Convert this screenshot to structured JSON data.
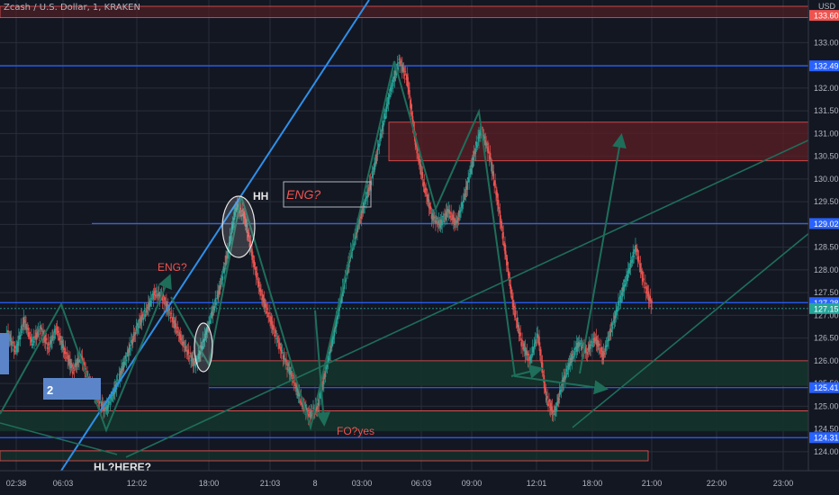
{
  "header": {
    "title": "Zcash / U.S. Dollar, 1, KRAKEN"
  },
  "currency": "USD",
  "colors": {
    "background": "#131722",
    "grid": "#2a2e39",
    "text": "#b2b5be",
    "up": "#26a69a",
    "down": "#ef5350",
    "blue_line": "#2962ff",
    "trend_line": "#2f8fe8",
    "arrow": "#1e6e5a",
    "supply_zone": "#5c1f26",
    "demand_zone": "#15332b",
    "annotation_red": "#ef5350",
    "badge_blue": "#5b85c8"
  },
  "chart_data": {
    "type": "candlestick",
    "x_ticks": [
      "02:38",
      "06:03",
      "12:02",
      "18:00",
      "21:03",
      "8",
      "03:00",
      "06:03",
      "09:00",
      "12:01",
      "18:00",
      "21:00",
      "22:00",
      "23:00"
    ],
    "y_ticks": [
      "124.00",
      "124.50",
      "125.00",
      "125.50",
      "126.00",
      "126.50",
      "127.00",
      "127.50",
      "128.00",
      "128.50",
      "129.00",
      "129.50",
      "130.00",
      "130.50",
      "131.00",
      "131.50",
      "132.00",
      "132.50",
      "133.00"
    ],
    "ylim": [
      123.8,
      133.8
    ],
    "price_markers": [
      {
        "label": "133.60",
        "value": 133.6,
        "color": "#ef5350"
      },
      {
        "label": "132.49",
        "value": 132.49,
        "color": "#2962ff"
      },
      {
        "label": "129.02",
        "value": 129.02,
        "color": "#2962ff"
      },
      {
        "label": "127.28",
        "value": 127.28,
        "color": "#2962ff"
      },
      {
        "label": "127.15",
        "value": 127.15,
        "color": "#26a69a"
      },
      {
        "label": "125.41",
        "value": 125.41,
        "color": "#2962ff"
      },
      {
        "label": "124.31",
        "value": 124.31,
        "color": "#2962ff"
      }
    ],
    "annotations": [
      {
        "text": "HH",
        "color": "#e6e6e6"
      },
      {
        "text": "ENG?",
        "color": "#ef5350"
      },
      {
        "text": "ENG?",
        "color": "#ef5350"
      },
      {
        "text": "FO?yes",
        "color": "#ef5350"
      },
      {
        "text": "HL?HERE?",
        "color": "#e6e6e6"
      },
      {
        "text": "2",
        "color": "#ffffff"
      }
    ],
    "price_path": [
      [
        0,
        125.9
      ],
      [
        0.3,
        126.6
      ],
      [
        0.6,
        126.2
      ],
      [
        0.9,
        126.9
      ],
      [
        1.2,
        126.4
      ],
      [
        1.5,
        126.7
      ],
      [
        1.8,
        126.3
      ],
      [
        2.1,
        126.7
      ],
      [
        2.4,
        126.2
      ],
      [
        2.7,
        125.8
      ],
      [
        3.0,
        126.1
      ],
      [
        3.3,
        125.5
      ],
      [
        3.6,
        125.2
      ],
      [
        3.9,
        124.9
      ],
      [
        4.2,
        125.3
      ],
      [
        4.5,
        125.8
      ],
      [
        4.8,
        126.3
      ],
      [
        5.1,
        126.8
      ],
      [
        5.4,
        127.1
      ],
      [
        5.7,
        127.5
      ],
      [
        6.0,
        127.4
      ],
      [
        6.3,
        127.0
      ],
      [
        6.6,
        126.6
      ],
      [
        6.9,
        126.2
      ],
      [
        7.2,
        125.9
      ],
      [
        7.5,
        126.4
      ],
      [
        7.8,
        127.0
      ],
      [
        8.1,
        127.6
      ],
      [
        8.4,
        128.4
      ],
      [
        8.7,
        129.4
      ],
      [
        9.0,
        129.2
      ],
      [
        9.3,
        128.3
      ],
      [
        9.6,
        127.5
      ],
      [
        9.9,
        127.0
      ],
      [
        10.2,
        126.5
      ],
      [
        10.5,
        126.0
      ],
      [
        10.8,
        125.6
      ],
      [
        11.1,
        125.1
      ],
      [
        11.4,
        124.8
      ],
      [
        11.7,
        125.0
      ],
      [
        12.0,
        125.8
      ],
      [
        12.3,
        126.6
      ],
      [
        12.6,
        127.5
      ],
      [
        12.9,
        128.3
      ],
      [
        13.2,
        129.0
      ],
      [
        13.5,
        129.6
      ],
      [
        13.8,
        130.3
      ],
      [
        14.1,
        131.2
      ],
      [
        14.4,
        132.0
      ],
      [
        14.7,
        132.6
      ],
      [
        15.0,
        132.2
      ],
      [
        15.3,
        130.8
      ],
      [
        15.6,
        129.9
      ],
      [
        15.9,
        129.2
      ],
      [
        16.2,
        129.0
      ],
      [
        16.5,
        129.3
      ],
      [
        16.8,
        129.0
      ],
      [
        17.1,
        129.6
      ],
      [
        17.4,
        130.4
      ],
      [
        17.7,
        131.1
      ],
      [
        18.0,
        130.6
      ],
      [
        18.3,
        129.6
      ],
      [
        18.6,
        128.4
      ],
      [
        18.9,
        127.2
      ],
      [
        19.2,
        126.4
      ],
      [
        19.5,
        126.0
      ],
      [
        19.8,
        126.6
      ],
      [
        20.1,
        125.2
      ],
      [
        20.4,
        124.8
      ],
      [
        20.7,
        125.5
      ],
      [
        21.0,
        126.0
      ],
      [
        21.3,
        126.4
      ],
      [
        21.6,
        126.2
      ],
      [
        21.9,
        126.5
      ],
      [
        22.2,
        126.1
      ],
      [
        22.5,
        126.7
      ],
      [
        22.8,
        127.3
      ],
      [
        23.1,
        127.9
      ],
      [
        23.4,
        128.5
      ],
      [
        23.7,
        127.7
      ],
      [
        24.0,
        127.2
      ]
    ]
  }
}
